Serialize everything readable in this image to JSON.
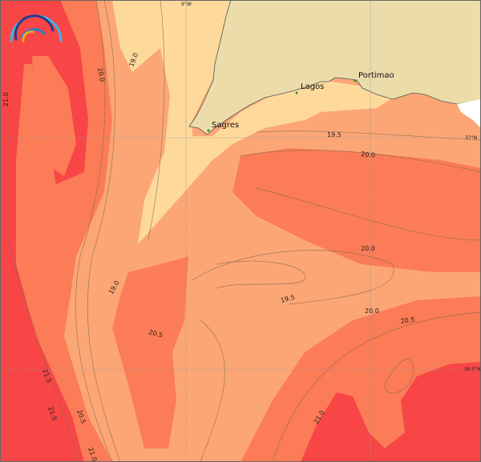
{
  "map": {
    "type": "sea-surface-temperature-contour",
    "colors": {
      "land": "#ecdcaa",
      "band_19": "#fdd99b",
      "band_19_5": "#fca676",
      "band_20": "#fb7c56",
      "band_21": "#f84545",
      "no_data": "#ffffff",
      "contour": "#8a6a50"
    },
    "grid_labels": {
      "lon_9w": "9°W",
      "lat_37n": "37°N",
      "lat_36_5n": "36.5°N"
    },
    "cities": [
      {
        "name": "Sagres"
      },
      {
        "name": "Lagos"
      },
      {
        "name": "Portimao"
      }
    ],
    "contour_labels": [
      "21.0",
      "20.0",
      "19.0",
      "19.5",
      "20.0",
      "20.0",
      "19.0",
      "19.5",
      "20.5",
      "20.0",
      "20.5",
      "21.5",
      "21.5",
      "20.5",
      "21.0",
      "21.0"
    ],
    "logo": {
      "icon": "rainbow-arcs-logo"
    }
  }
}
